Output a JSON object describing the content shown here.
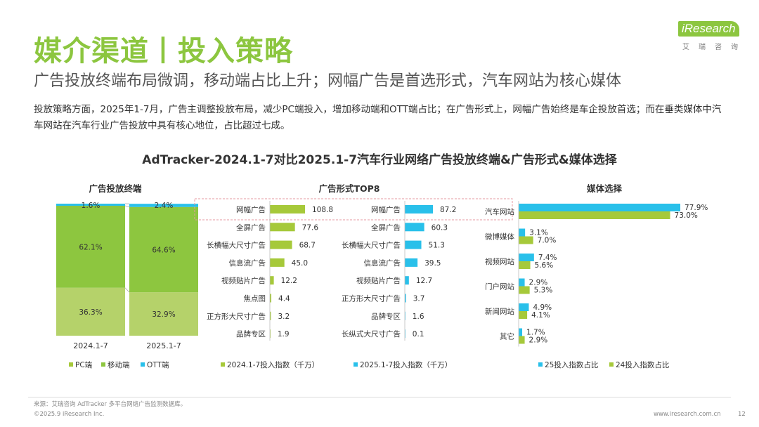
{
  "header": {
    "title": "媒介渠道丨投入策略",
    "subtitle": "广告投放终端布局微调，移动端占比上升；网幅广告是首选形式，汽车网站为核心媒体",
    "body": "投放策略方面，2025年1-7月，广告主调整投放布局，减少PC端投入，增加移动端和OTT端占比；在广告形式上，网幅广告始终是车企投放首选；而在垂类媒体中汽车网站在汽车行业广告投放中具有核心地位，占比超过七成。",
    "main_title": "AdTracker-2024.1-7对比2025.1-7汽车行业网络广告投放终端&广告形式&媒体选择"
  },
  "logo": {
    "brand": "iResearch",
    "sub": "艾瑞咨询"
  },
  "footer": {
    "source": "来源：艾瑞咨询 AdTracker 多平台网络广告监测数据库。",
    "copyright": "©2025.9 iResearch Inc.",
    "url": "www.iresearch.com.cn",
    "page": "12"
  },
  "colors": {
    "green": "#a6c93a",
    "cyan": "#29c0ea",
    "title_green": "#8cc63f"
  },
  "chart_data": [
    {
      "type": "bar",
      "stacked": true,
      "percent": true,
      "title": "广告投放终端",
      "categories": [
        "2024.1-7",
        "2025.1-7"
      ],
      "series": [
        {
          "name": "PC端",
          "values": [
            36.3,
            32.9
          ],
          "labels": [
            "36.3%",
            "32.9%"
          ]
        },
        {
          "name": "移动端",
          "values": [
            62.1,
            64.6
          ],
          "labels": [
            "62.1%",
            "64.6%"
          ]
        },
        {
          "name": "OTT端",
          "values": [
            1.6,
            2.4
          ],
          "labels": [
            "1.6%",
            "2.4%"
          ]
        }
      ]
    },
    {
      "type": "bar",
      "orientation": "horizontal",
      "title": "广告形式TOP8",
      "series": [
        {
          "name": "2024.1-7投入指数（千万）",
          "categories": [
            "网幅广告",
            "全屏广告",
            "长横幅大尺寸广告",
            "信息流广告",
            "视频贴片广告",
            "焦点图",
            "正方形大尺寸广告",
            "品牌专区"
          ],
          "values": [
            108.8,
            77.6,
            68.7,
            45.0,
            12.2,
            4.4,
            3.2,
            1.9
          ],
          "labels": [
            "108.8",
            "77.6",
            "68.7",
            "45.0",
            "12.2",
            "4.4",
            "3.2",
            "1.9"
          ]
        },
        {
          "name": "2025.1-7投入指数（千万）",
          "categories": [
            "网幅广告",
            "全屏广告",
            "长横幅大尺寸广告",
            "信息流广告",
            "视频贴片广告",
            "正方形大尺寸广告",
            "品牌专区",
            "长纵式大尺寸广告"
          ],
          "values": [
            87.2,
            60.3,
            51.3,
            39.5,
            12.7,
            3.7,
            1.6,
            0.1
          ],
          "labels": [
            "87.2",
            "60.3",
            "51.3",
            "39.5",
            "12.7",
            "3.7",
            "1.6",
            "0.1"
          ]
        }
      ]
    },
    {
      "type": "bar",
      "orientation": "horizontal",
      "title": "媒体选择",
      "categories": [
        "汽车网站",
        "微博媒体",
        "视频网站",
        "门户网站",
        "新闻网站",
        "其它"
      ],
      "series": [
        {
          "name": "25投入指数占比",
          "values": [
            77.9,
            3.1,
            7.4,
            2.9,
            4.9,
            1.7
          ],
          "labels": [
            "77.9%",
            "3.1%",
            "7.4%",
            "2.9%",
            "4.9%",
            "1.7%"
          ]
        },
        {
          "name": "24投入指数占比",
          "values": [
            73.0,
            7.0,
            5.6,
            5.3,
            4.1,
            2.9
          ],
          "labels": [
            "73.0%",
            "7.0%",
            "5.6%",
            "5.3%",
            "4.1%",
            "2.9%"
          ]
        }
      ]
    }
  ]
}
